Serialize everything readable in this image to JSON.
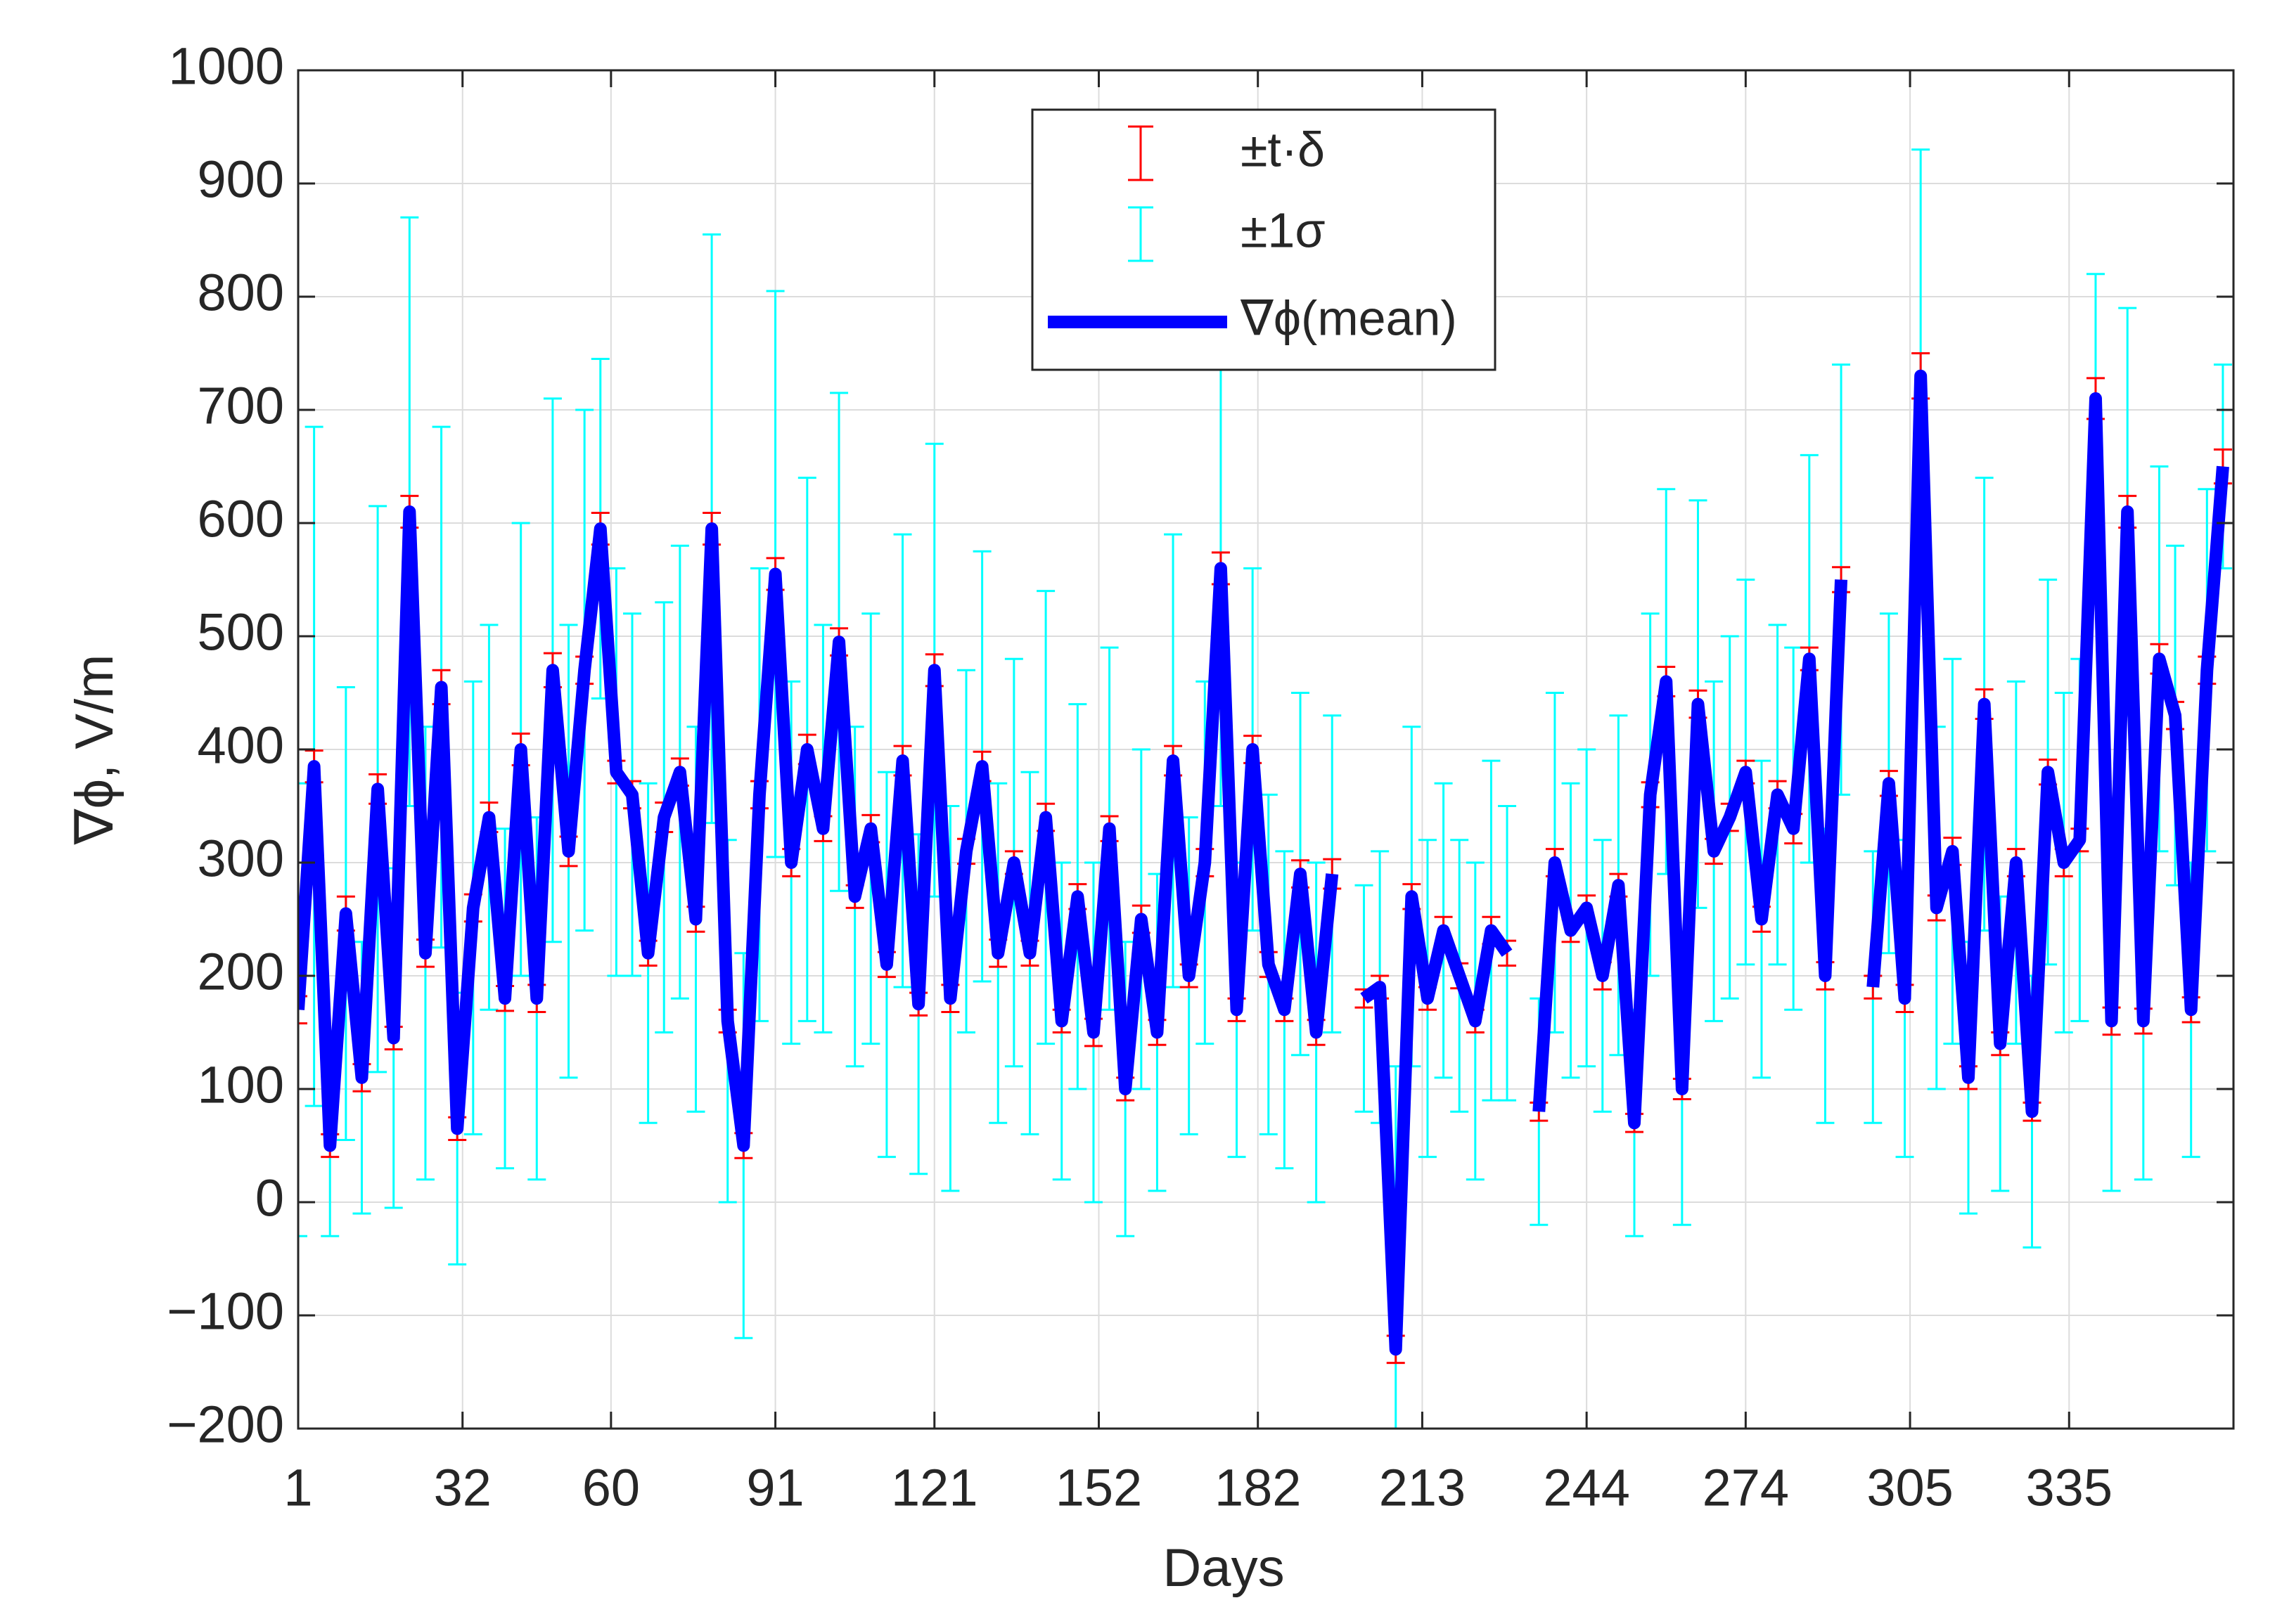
{
  "chart_data": {
    "type": "line",
    "xlabel": "Days",
    "ylabel": "∇ϕ, V/m",
    "xlim": [
      1,
      366
    ],
    "ylim": [
      -200,
      1000
    ],
    "xticks": [
      1,
      32,
      60,
      91,
      121,
      152,
      182,
      213,
      244,
      274,
      305,
      335
    ],
    "yticks": [
      {
        "value": -200,
        "label": "−200"
      },
      {
        "value": -100,
        "label": "−100"
      },
      0,
      100,
      200,
      300,
      400,
      500,
      600,
      700,
      800,
      900,
      1000
    ],
    "grid": true,
    "legend": "upper center",
    "x": [
      1,
      4,
      7,
      10,
      13,
      16,
      19,
      22,
      25,
      28,
      31,
      34,
      37,
      40,
      43,
      46,
      49,
      52,
      55,
      58,
      61,
      64,
      67,
      70,
      73,
      76,
      79,
      82,
      85,
      88,
      91,
      94,
      97,
      100,
      103,
      106,
      109,
      112,
      115,
      118,
      121,
      124,
      127,
      130,
      133,
      136,
      139,
      142,
      145,
      148,
      151,
      154,
      157,
      160,
      163,
      166,
      169,
      172,
      175,
      178,
      181,
      184,
      187,
      190,
      193,
      196,
      199,
      202,
      205,
      208,
      211,
      214,
      217,
      220,
      223,
      226,
      229,
      232,
      235,
      238,
      241,
      244,
      247,
      250,
      253,
      256,
      259,
      262,
      265,
      268,
      271,
      274,
      277,
      280,
      283,
      286,
      289,
      292,
      295,
      298,
      301,
      304,
      307,
      310,
      313,
      316,
      319,
      322,
      325,
      328,
      331,
      334,
      337,
      340,
      343,
      346,
      349,
      352,
      355,
      358,
      361,
      364
    ],
    "series": [
      {
        "name": "±t·δ",
        "type": "errorbar",
        "color": "#ff0000",
        "values": [
          12,
          14,
          10,
          15,
          12,
          13,
          10,
          14,
          12,
          15,
          10,
          12,
          13,
          11,
          14,
          12,
          15,
          13,
          12,
          14,
          10,
          12,
          11,
          13,
          12,
          11,
          14,
          10,
          11,
          12,
          14,
          12,
          13,
          11,
          12,
          10,
          12,
          11,
          13,
          10,
          14,
          12,
          11,
          13,
          12,
          10,
          11,
          12,
          10,
          11,
          12,
          11,
          10,
          12,
          11,
          13,
          10,
          12,
          14,
          10,
          12,
          11,
          10,
          12,
          11,
          13,
          null,
          8,
          10,
          12,
          11,
          10,
          12,
          11,
          10,
          12,
          11,
          null,
          8,
          12,
          10,
          11,
          12,
          10,
          8,
          11,
          13,
          9,
          12,
          11,
          12,
          10,
          11,
          12,
          13,
          10,
          12,
          11,
          null,
          10,
          11,
          12,
          20,
          11,
          12,
          10,
          13,
          10,
          12,
          8,
          11,
          12,
          10,
          18,
          12,
          14,
          11,
          13,
          12,
          11,
          12,
          15
        ]
      },
      {
        "name": "±1σ",
        "type": "errorbar",
        "color": "#00ffff",
        "values": [
          200,
          300,
          80,
          200,
          120,
          250,
          150,
          260,
          200,
          230,
          120,
          200,
          170,
          150,
          200,
          160,
          240,
          200,
          230,
          150,
          180,
          160,
          150,
          190,
          200,
          170,
          260,
          160,
          170,
          200,
          250,
          160,
          240,
          180,
          220,
          150,
          190,
          170,
          200,
          150,
          200,
          170,
          160,
          190,
          150,
          180,
          160,
          200,
          140,
          170,
          150,
          160,
          130,
          150,
          140,
          200,
          140,
          160,
          210,
          130,
          160,
          150,
          140,
          160,
          150,
          140,
          null,
          100,
          120,
          250,
          150,
          140,
          130,
          120,
          140,
          150,
          130,
          null,
          100,
          150,
          130,
          140,
          120,
          150,
          100,
          160,
          170,
          120,
          180,
          150,
          160,
          170,
          140,
          150,
          160,
          180,
          130,
          190,
          null,
          120,
          150,
          140,
          200,
          160,
          170,
          120,
          200,
          130,
          160,
          120,
          170,
          150,
          160,
          110,
          150,
          180,
          140,
          170,
          150,
          130,
          160,
          90
        ]
      },
      {
        "name": "∇ϕ(mean)",
        "type": "line",
        "color": "#0000ff",
        "values": [
          170,
          385,
          50,
          255,
          110,
          365,
          145,
          610,
          220,
          455,
          65,
          260,
          340,
          180,
          400,
          180,
          470,
          310,
          470,
          595,
          380,
          360,
          220,
          340,
          380,
          250,
          595,
          160,
          50,
          360,
          555,
          300,
          400,
          330,
          495,
          270,
          330,
          210,
          390,
          175,
          470,
          180,
          310,
          385,
          220,
          300,
          220,
          340,
          160,
          270,
          150,
          330,
          100,
          250,
          150,
          390,
          200,
          300,
          560,
          170,
          400,
          210,
          170,
          290,
          150,
          290,
          null,
          180,
          190,
          -130,
          270,
          180,
          240,
          200,
          160,
          240,
          220,
          null,
          80,
          300,
          240,
          260,
          200,
          280,
          70,
          360,
          460,
          100,
          440,
          310,
          340,
          380,
          250,
          360,
          330,
          480,
          200,
          550,
          null,
          190,
          370,
          180,
          730,
          260,
          310,
          110,
          440,
          140,
          300,
          80,
          380,
          300,
          320,
          710,
          160,
          610,
          160,
          480,
          430,
          170,
          470,
          650
        ]
      }
    ]
  }
}
